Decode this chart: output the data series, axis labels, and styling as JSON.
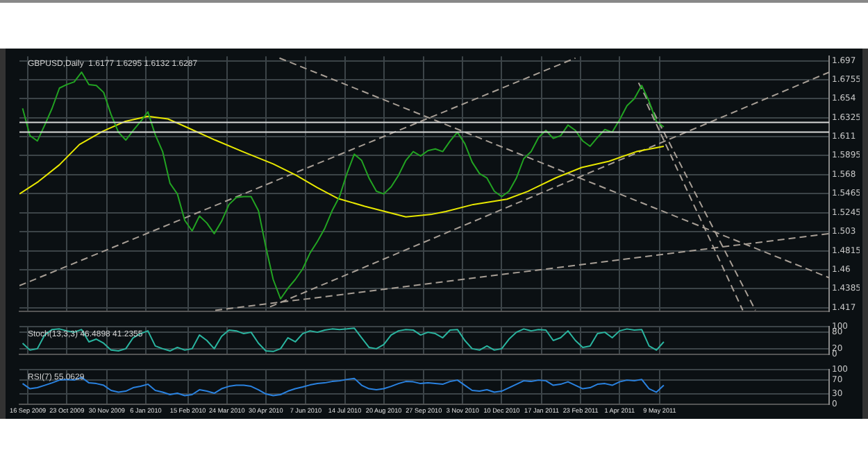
{
  "chart_data": [
    {
      "type": "line",
      "title": "GBPUSD,Daily  1.6177 1.6295 1.6132 1.6287",
      "marker": "none",
      "grid": true,
      "tick_labels": "y",
      "x": [
        "2009-09-11",
        "2009-09-18",
        "2009-09-25",
        "2009-10-02",
        "2009-10-09",
        "2009-10-16",
        "2009-10-23",
        "2009-10-30",
        "2009-11-06",
        "2009-11-13",
        "2009-11-20",
        "2009-11-27",
        "2009-12-04",
        "2009-12-11",
        "2009-12-18",
        "2009-12-25",
        "2010-01-01",
        "2010-01-08",
        "2010-01-15",
        "2010-01-22",
        "2010-01-29",
        "2010-02-05",
        "2010-02-12",
        "2010-02-19",
        "2010-02-26",
        "2010-03-05",
        "2010-03-12",
        "2010-03-19",
        "2010-03-26",
        "2010-04-02",
        "2010-04-09",
        "2010-04-16",
        "2010-04-23",
        "2010-04-30",
        "2010-05-07",
        "2010-05-14",
        "2010-05-21",
        "2010-05-28",
        "2010-06-04",
        "2010-06-11",
        "2010-06-18",
        "2010-06-25",
        "2010-07-02",
        "2010-07-09",
        "2010-07-16",
        "2010-07-23",
        "2010-07-30",
        "2010-08-06",
        "2010-08-13",
        "2010-08-20",
        "2010-08-27",
        "2010-09-03",
        "2010-09-10",
        "2010-09-17",
        "2010-09-24",
        "2010-10-01",
        "2010-10-08",
        "2010-10-15",
        "2010-10-22",
        "2010-10-29",
        "2010-11-05",
        "2010-11-12",
        "2010-11-19",
        "2010-11-26",
        "2010-12-03",
        "2010-12-10",
        "2010-12-17",
        "2010-12-24",
        "2010-12-31",
        "2011-01-07",
        "2011-01-14",
        "2011-01-21",
        "2011-01-28",
        "2011-02-04",
        "2011-02-11",
        "2011-02-18",
        "2011-02-25",
        "2011-03-04",
        "2011-03-11",
        "2011-03-18",
        "2011-03-25",
        "2011-04-01",
        "2011-04-08",
        "2011-04-15",
        "2011-04-22",
        "2011-04-29",
        "2011-05-06",
        "2011-05-13"
      ],
      "xlim": [
        "2009-09-08",
        "2011-10-17"
      ],
      "xticks": [
        {
          "value": "2009-09-16",
          "label": null
        },
        {
          "value": "2009-10-23",
          "label": null
        },
        {
          "value": "2009-11-30",
          "label": null
        },
        {
          "value": "2010-01-06",
          "label": null
        },
        {
          "value": "2010-02-15",
          "label": null
        },
        {
          "value": "2010-03-24",
          "label": null
        },
        {
          "value": "2010-04-30",
          "label": null
        },
        {
          "value": "2010-06-07",
          "label": null
        },
        {
          "value": "2010-07-14",
          "label": null
        },
        {
          "value": "2010-08-20",
          "label": null
        },
        {
          "value": "2010-09-27",
          "label": null
        },
        {
          "value": "2010-11-03",
          "label": null
        },
        {
          "value": "2010-12-10",
          "label": null
        },
        {
          "value": "2011-01-17",
          "label": null
        },
        {
          "value": "2011-02-23",
          "label": null
        },
        {
          "value": "2011-04-01",
          "label": null
        },
        {
          "value": "2011-05-09",
          "label": null
        }
      ],
      "ylim": [
        1.413,
        1.702
      ],
      "yticks": [
        1.417,
        1.4385,
        1.46,
        1.4815,
        1.503,
        1.5245,
        1.5465,
        1.568,
        1.5895,
        1.611,
        1.6325,
        1.654,
        1.6755,
        1.697
      ],
      "ref_lines": [
        {
          "axis": "y",
          "value": 1.627,
          "color": "#d8d8d8"
        },
        {
          "axis": "y",
          "value": 1.616,
          "color": "#d8d8d8"
        }
      ],
      "series": [
        {
          "color": "#22a322",
          "values": [
            1.643,
            1.612,
            1.606,
            1.624,
            1.643,
            1.666,
            1.67,
            1.673,
            1.684,
            1.67,
            1.669,
            1.661,
            1.636,
            1.616,
            1.607,
            1.618,
            1.628,
            1.639,
            1.613,
            1.594,
            1.558,
            1.546,
            1.516,
            1.504,
            1.521,
            1.513,
            1.501,
            1.515,
            1.534,
            1.542,
            1.543,
            1.543,
            1.527,
            1.486,
            1.449,
            1.427,
            1.439,
            1.449,
            1.461,
            1.479,
            1.492,
            1.507,
            1.527,
            1.543,
            1.569,
            1.591,
            1.584,
            1.564,
            1.549,
            1.546,
            1.554,
            1.567,
            1.584,
            1.594,
            1.589,
            1.595,
            1.597,
            1.594,
            1.606,
            1.616,
            1.603,
            1.582,
            1.569,
            1.564,
            1.549,
            1.543,
            1.549,
            1.564,
            1.586,
            1.594,
            1.61,
            1.618,
            1.609,
            1.612,
            1.624,
            1.618,
            1.606,
            1.6,
            1.61,
            1.619,
            1.616,
            1.63,
            1.646,
            1.654,
            1.669,
            1.651,
            1.628,
            1.622
          ]
        },
        {
          "color": "#e8e800",
          "x": [
            "2009-09-08",
            "2009-09-26",
            "2009-10-16",
            "2009-11-04",
            "2009-11-26",
            "2009-12-17",
            "2010-01-08",
            "2010-01-27",
            "2010-02-15",
            "2010-03-13",
            "2010-04-08",
            "2010-05-07",
            "2010-05-29",
            "2010-06-18",
            "2010-07-07",
            "2010-08-02",
            "2010-09-10",
            "2010-10-05",
            "2010-10-18",
            "2010-11-13",
            "2010-12-15",
            "2011-01-04",
            "2011-01-30",
            "2011-02-24",
            "2011-03-22",
            "2011-04-17",
            "2011-05-13"
          ],
          "values": [
            1.546,
            1.56,
            1.579,
            1.602,
            1.617,
            1.628,
            1.634,
            1.631,
            1.621,
            1.607,
            1.594,
            1.58,
            1.567,
            1.553,
            1.541,
            1.532,
            1.52,
            1.523,
            1.526,
            1.534,
            1.54,
            1.549,
            1.564,
            1.576,
            1.583,
            1.594,
            1.6
          ]
        },
        {
          "color": "#a89f96",
          "line_style": "dashed",
          "x": [
            "2010-05-13",
            "2011-10-17"
          ],
          "values": [
            1.7,
            1.451
          ]
        },
        {
          "color": "#a89f96",
          "line_style": "dashed",
          "x": [
            "2010-05-04",
            "2011-10-17"
          ],
          "values": [
            1.418,
            1.684
          ]
        },
        {
          "color": "#a89f96",
          "line_style": "dashed",
          "x": [
            "2009-09-08",
            "2011-02-18"
          ],
          "values": [
            1.442,
            1.7
          ]
        },
        {
          "color": "#a89f96",
          "line_style": "dashed",
          "x": [
            "2010-03-13",
            "2011-10-17"
          ],
          "values": [
            1.414,
            1.501
          ]
        },
        {
          "color": "#a89f96",
          "line_style": "dashed",
          "x": [
            "2011-04-19",
            "2011-08-08"
          ],
          "values": [
            1.672,
            1.414
          ]
        },
        {
          "color": "#a89f96",
          "line_style": "dashed",
          "x": [
            "2011-04-27",
            "2011-07-27"
          ],
          "values": [
            1.648,
            1.414
          ]
        }
      ]
    },
    {
      "type": "line",
      "title": "Stoch(13,3,3) 46.4898 41.2355",
      "marker": "none",
      "grid": true,
      "tick_labels": "y",
      "xlim": [
        "2009-09-08",
        "2011-10-17"
      ],
      "xticks": [
        {
          "value": "2009-09-16",
          "label": null
        },
        {
          "value": "2009-10-23",
          "label": null
        },
        {
          "value": "2009-11-30",
          "label": null
        },
        {
          "value": "2010-01-06",
          "label": null
        },
        {
          "value": "2010-02-15",
          "label": null
        },
        {
          "value": "2010-03-24",
          "label": null
        },
        {
          "value": "2010-04-30",
          "label": null
        },
        {
          "value": "2010-06-07",
          "label": null
        },
        {
          "value": "2010-07-14",
          "label": null
        },
        {
          "value": "2010-08-20",
          "label": null
        },
        {
          "value": "2010-09-27",
          "label": null
        },
        {
          "value": "2010-11-03",
          "label": null
        },
        {
          "value": "2010-12-10",
          "label": null
        },
        {
          "value": "2011-01-17",
          "label": null
        },
        {
          "value": "2011-02-23",
          "label": null
        },
        {
          "value": "2011-04-01",
          "label": null
        },
        {
          "value": "2011-05-09",
          "label": null
        }
      ],
      "ylim": [
        0,
        100
      ],
      "yticks": [
        0,
        20,
        80,
        100
      ],
      "x": [
        "2009-09-11",
        "2009-09-18",
        "2009-09-25",
        "2009-10-02",
        "2009-10-09",
        "2009-10-16",
        "2009-10-23",
        "2009-10-30",
        "2009-11-06",
        "2009-11-13",
        "2009-11-20",
        "2009-11-27",
        "2009-12-04",
        "2009-12-11",
        "2009-12-18",
        "2009-12-25",
        "2010-01-01",
        "2010-01-08",
        "2010-01-15",
        "2010-01-22",
        "2010-01-29",
        "2010-02-05",
        "2010-02-12",
        "2010-02-19",
        "2010-02-26",
        "2010-03-05",
        "2010-03-12",
        "2010-03-19",
        "2010-03-26",
        "2010-04-02",
        "2010-04-09",
        "2010-04-16",
        "2010-04-23",
        "2010-04-30",
        "2010-05-07",
        "2010-05-14",
        "2010-05-21",
        "2010-05-28",
        "2010-06-04",
        "2010-06-11",
        "2010-06-18",
        "2010-06-25",
        "2010-07-02",
        "2010-07-09",
        "2010-07-16",
        "2010-07-23",
        "2010-07-30",
        "2010-08-06",
        "2010-08-13",
        "2010-08-20",
        "2010-08-27",
        "2010-09-03",
        "2010-09-10",
        "2010-09-17",
        "2010-09-24",
        "2010-10-01",
        "2010-10-08",
        "2010-10-15",
        "2010-10-22",
        "2010-10-29",
        "2010-11-05",
        "2010-11-12",
        "2010-11-19",
        "2010-11-26",
        "2010-12-03",
        "2010-12-10",
        "2010-12-17",
        "2010-12-24",
        "2010-12-31",
        "2011-01-07",
        "2011-01-14",
        "2011-01-21",
        "2011-01-28",
        "2011-02-04",
        "2011-02-11",
        "2011-02-18",
        "2011-02-25",
        "2011-03-04",
        "2011-03-11",
        "2011-03-18",
        "2011-03-25",
        "2011-04-01",
        "2011-04-08",
        "2011-04-15",
        "2011-04-22",
        "2011-04-29",
        "2011-05-06",
        "2011-05-13"
      ],
      "series": [
        {
          "color": "#2ab5a0",
          "values": [
            40,
            15,
            20,
            70,
            90,
            92,
            85,
            80,
            90,
            45,
            55,
            40,
            15,
            12,
            20,
            60,
            75,
            85,
            30,
            20,
            12,
            25,
            15,
            20,
            70,
            50,
            20,
            65,
            88,
            85,
            75,
            80,
            40,
            12,
            10,
            20,
            60,
            45,
            75,
            85,
            80,
            88,
            92,
            90,
            92,
            95,
            60,
            25,
            20,
            35,
            70,
            85,
            90,
            88,
            70,
            80,
            75,
            60,
            88,
            90,
            50,
            20,
            15,
            30,
            15,
            20,
            55,
            80,
            92,
            85,
            90,
            88,
            50,
            60,
            85,
            50,
            25,
            30,
            75,
            80,
            60,
            85,
            92,
            88,
            90,
            30,
            15,
            45
          ]
        }
      ]
    },
    {
      "type": "line",
      "title": "RSI(7) 55.0629",
      "marker": "none",
      "grid": true,
      "xlim": [
        "2009-09-08",
        "2011-10-17"
      ],
      "xticks": [
        {
          "value": "2009-09-16",
          "label": "16 Sep 2009"
        },
        {
          "value": "2009-10-23",
          "label": "23 Oct 2009"
        },
        {
          "value": "2009-11-30",
          "label": "30 Nov 2009"
        },
        {
          "value": "2010-01-06",
          "label": "6 Jan 2010"
        },
        {
          "value": "2010-02-15",
          "label": "15 Feb 2010"
        },
        {
          "value": "2010-03-24",
          "label": "24 Mar 2010"
        },
        {
          "value": "2010-04-30",
          "label": "30 Apr 2010"
        },
        {
          "value": "2010-06-07",
          "label": "7 Jun 2010"
        },
        {
          "value": "2010-07-14",
          "label": "14 Jul 2010"
        },
        {
          "value": "2010-08-20",
          "label": "20 Aug 2010"
        },
        {
          "value": "2010-09-27",
          "label": "27 Sep 2010"
        },
        {
          "value": "2010-11-03",
          "label": "3 Nov 2010"
        },
        {
          "value": "2010-12-10",
          "label": "10 Dec 2010"
        },
        {
          "value": "2011-01-17",
          "label": "17 Jan 2011"
        },
        {
          "value": "2011-02-23",
          "label": "23 Feb 2011"
        },
        {
          "value": "2011-04-01",
          "label": "1 Apr 2011"
        },
        {
          "value": "2011-05-09",
          "label": "9 May 2011"
        }
      ],
      "ylim": [
        0,
        100
      ],
      "yticks": [
        0,
        30,
        70,
        100
      ],
      "x": [
        "2009-09-11",
        "2009-09-18",
        "2009-09-25",
        "2009-10-02",
        "2009-10-09",
        "2009-10-16",
        "2009-10-23",
        "2009-10-30",
        "2009-11-06",
        "2009-11-13",
        "2009-11-20",
        "2009-11-27",
        "2009-12-04",
        "2009-12-11",
        "2009-12-18",
        "2009-12-25",
        "2010-01-01",
        "2010-01-08",
        "2010-01-15",
        "2010-01-22",
        "2010-01-29",
        "2010-02-05",
        "2010-02-12",
        "2010-02-19",
        "2010-02-26",
        "2010-03-05",
        "2010-03-12",
        "2010-03-19",
        "2010-03-26",
        "2010-04-02",
        "2010-04-09",
        "2010-04-16",
        "2010-04-23",
        "2010-04-30",
        "2010-05-07",
        "2010-05-14",
        "2010-05-21",
        "2010-05-28",
        "2010-06-04",
        "2010-06-11",
        "2010-06-18",
        "2010-06-25",
        "2010-07-02",
        "2010-07-09",
        "2010-07-16",
        "2010-07-23",
        "2010-07-30",
        "2010-08-06",
        "2010-08-13",
        "2010-08-20",
        "2010-08-27",
        "2010-09-03",
        "2010-09-10",
        "2010-09-17",
        "2010-09-24",
        "2010-10-01",
        "2010-10-08",
        "2010-10-15",
        "2010-10-22",
        "2010-10-29",
        "2010-11-05",
        "2010-11-12",
        "2010-11-19",
        "2010-11-26",
        "2010-12-03",
        "2010-12-10",
        "2010-12-17",
        "2010-12-24",
        "2010-12-31",
        "2011-01-07",
        "2011-01-14",
        "2011-01-21",
        "2011-01-28",
        "2011-02-04",
        "2011-02-11",
        "2011-02-18",
        "2011-02-25",
        "2011-03-04",
        "2011-03-11",
        "2011-03-18",
        "2011-03-25",
        "2011-04-01",
        "2011-04-08",
        "2011-04-15",
        "2011-04-22",
        "2011-04-29",
        "2011-05-06",
        "2011-05-13"
      ],
      "series": [
        {
          "color": "#2a82e0",
          "values": [
            60,
            45,
            48,
            55,
            62,
            70,
            72,
            70,
            78,
            62,
            60,
            55,
            40,
            35,
            38,
            48,
            52,
            58,
            40,
            35,
            28,
            32,
            25,
            28,
            42,
            38,
            32,
            45,
            52,
            55,
            55,
            52,
            42,
            30,
            25,
            28,
            38,
            45,
            50,
            56,
            60,
            62,
            66,
            68,
            72,
            75,
            55,
            45,
            42,
            45,
            52,
            60,
            66,
            65,
            60,
            62,
            60,
            58,
            66,
            70,
            55,
            40,
            38,
            42,
            35,
            38,
            48,
            58,
            68,
            66,
            70,
            68,
            55,
            58,
            65,
            55,
            45,
            48,
            58,
            60,
            55,
            65,
            70,
            68,
            72,
            45,
            35,
            55
          ]
        }
      ]
    }
  ]
}
